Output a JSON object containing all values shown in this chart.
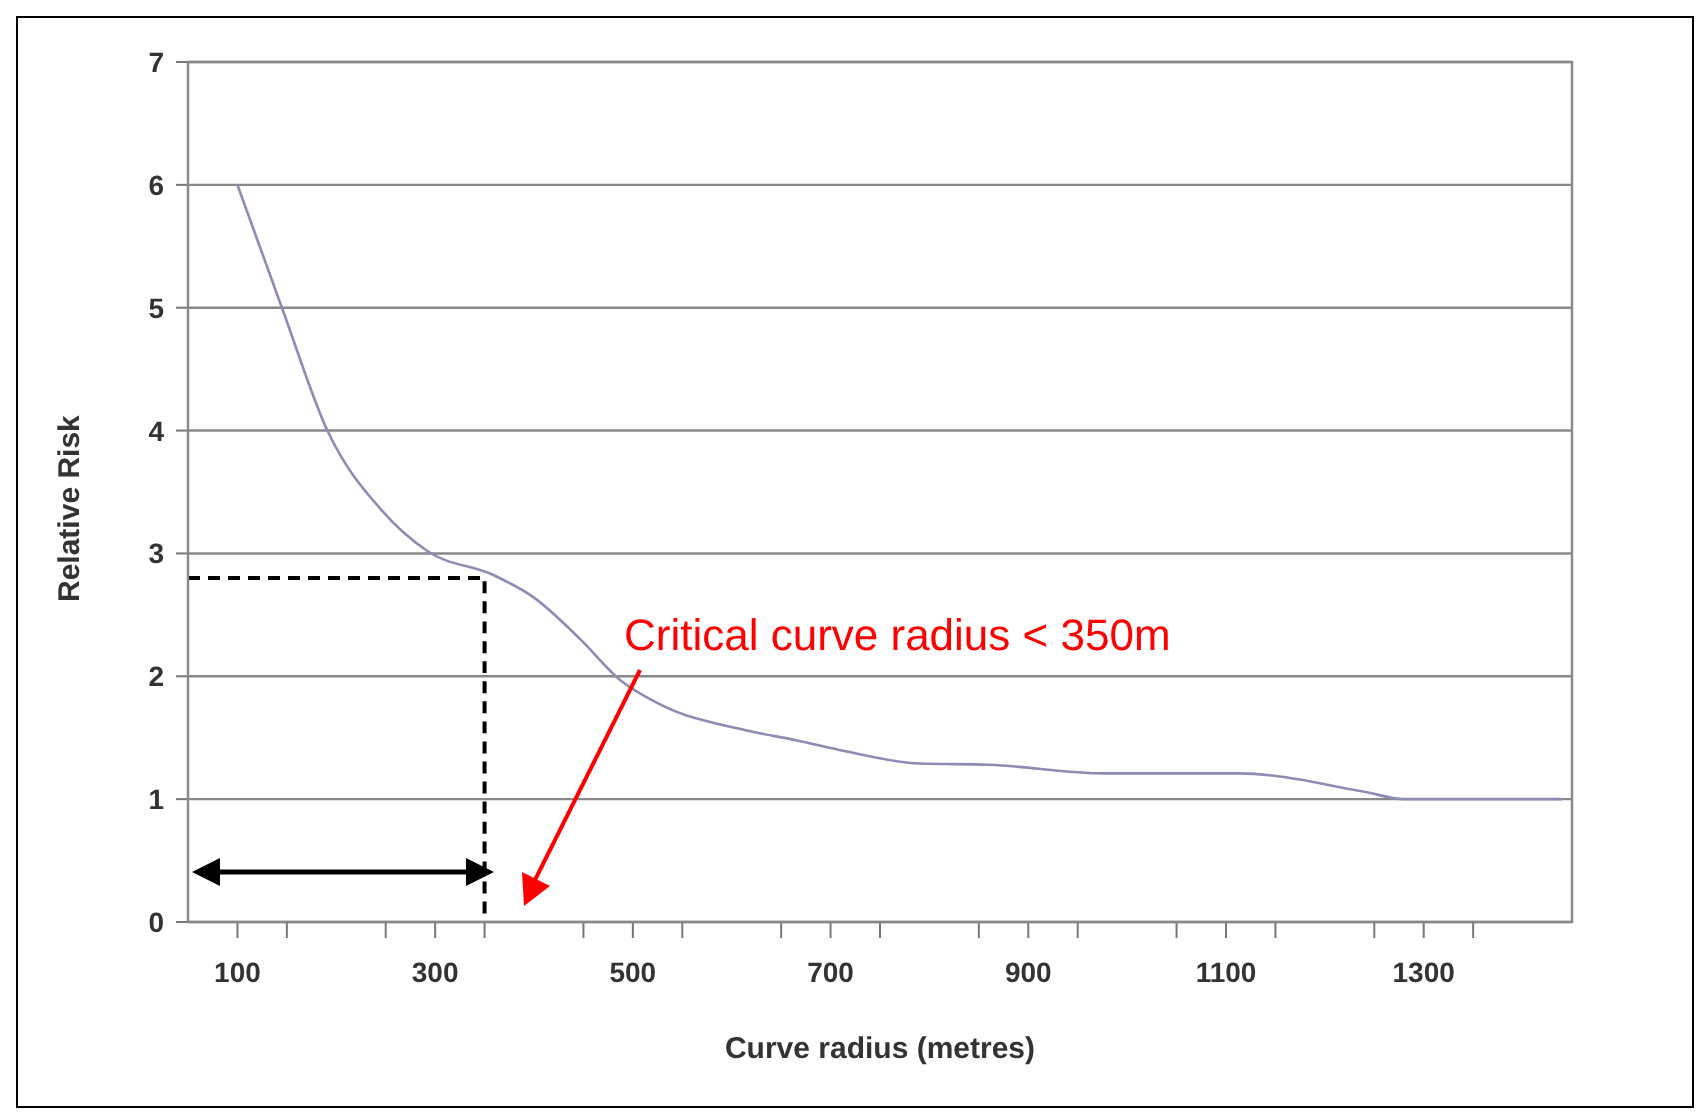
{
  "chart_data": {
    "type": "line",
    "xlabel": "Curve radius (metres)",
    "ylabel": "Relative Risk",
    "xlim": [
      50,
      1450
    ],
    "ylim": [
      0,
      7
    ],
    "xticks": [
      100,
      {
        "value": 150,
        "label": null
      },
      {
        "value": 250,
        "label": null
      },
      300,
      {
        "value": 350,
        "label": null
      },
      {
        "value": 450,
        "label": null
      },
      500,
      {
        "value": 550,
        "label": null
      },
      {
        "value": 650,
        "label": null
      },
      700,
      {
        "value": 750,
        "label": null
      },
      {
        "value": 850,
        "label": null
      },
      900,
      {
        "value": 950,
        "label": null
      },
      {
        "value": 1050,
        "label": null
      },
      1100,
      {
        "value": 1150,
        "label": null
      },
      {
        "value": 1250,
        "label": null
      },
      1300,
      {
        "value": 1350,
        "label": null
      }
    ],
    "yticks": [
      0,
      1,
      2,
      3,
      4,
      5,
      6,
      7
    ],
    "grid": "y",
    "marker": "none",
    "series": [
      {
        "color": "#8c8cb4",
        "line_style": "solid",
        "x": [
          100,
          145,
          191,
          246,
          292,
          360,
          400,
          447,
          487,
          528,
          614,
          665,
          715,
          790,
          860,
          977,
          1112,
          1240,
          1280,
          1409,
          1440
        ],
        "values": [
          6,
          5.0,
          4.0,
          3.35,
          3.02,
          2.82,
          2.64,
          2.3,
          1.97,
          1.77,
          1.56,
          1.48,
          1.39,
          1.29,
          1.28,
          1.21,
          1.21,
          1.06,
          1.0,
          1.0,
          1.0
        ]
      },
      {
        "color": "#000000",
        "line_style": "dashed",
        "x": [
          50,
          350,
          350
        ],
        "values": [
          2.8,
          2.8,
          0
        ]
      }
    ],
    "annotations": [
      "Critical curve radius < 350m"
    ]
  }
}
